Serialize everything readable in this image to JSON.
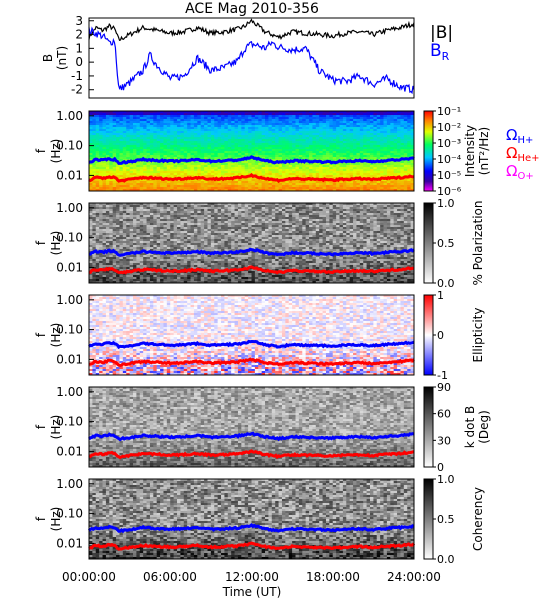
{
  "title": "ACE Mag 2010-356",
  "x_axis": {
    "label": "Time (UT)",
    "ticks": [
      "00:00:00",
      "06:00:00",
      "12:00:00",
      "18:00:00",
      "24:00:00"
    ]
  },
  "colors": {
    "b_magnitude": "#000000",
    "b_radial": "#0000ff",
    "omega_h": "#0000ff",
    "omega_he": "#ff0000",
    "omega_o": "#ff00ff"
  },
  "chart_data": [
    {
      "type": "line",
      "panel": "magnetic-field",
      "ylabel": [
        "B",
        "(nT)"
      ],
      "yticks": [
        "3",
        "2",
        "1",
        "0",
        "-1",
        "-2"
      ],
      "ylim": [
        -2.6,
        3.2
      ],
      "x_hours": [
        0,
        0.5,
        1,
        1.5,
        1.9,
        2.2,
        3,
        4,
        4.5,
        5,
        6,
        7,
        8,
        9,
        10,
        11,
        11.5,
        12,
        12.5,
        13,
        13.5,
        14,
        15,
        16,
        17,
        18,
        19,
        20,
        21,
        22,
        23,
        24
      ],
      "series": [
        {
          "name": "|B|",
          "values": [
            1.8,
            2.5,
            2.3,
            2.6,
            2.4,
            1.6,
            2.0,
            2.5,
            2.4,
            2.3,
            2.1,
            2.2,
            2.5,
            2.1,
            2.2,
            2.4,
            2.6,
            3.0,
            2.6,
            2.2,
            2.0,
            1.8,
            2.2,
            2.1,
            2.0,
            1.9,
            2.1,
            2.2,
            2.0,
            2.3,
            2.5,
            2.8
          ]
        },
        {
          "name": "B_R",
          "values": [
            2.3,
            2.1,
            1.9,
            1.4,
            1.6,
            -2.0,
            -1.5,
            -0.6,
            0.5,
            -0.2,
            -1.2,
            -1.0,
            0.3,
            -0.6,
            -0.4,
            0.1,
            1.0,
            1.3,
            1.2,
            1.0,
            1.4,
            1.1,
            0.9,
            1.0,
            -0.6,
            -1.3,
            -1.4,
            -1.0,
            -1.6,
            -1.2,
            -1.8,
            -2.0
          ]
        }
      ]
    },
    {
      "type": "heatmap",
      "panel": "power-spectrum",
      "ylabel": [
        "f",
        "(Hz)"
      ],
      "yticks": [
        "1.00",
        "0.10",
        "0.01"
      ],
      "colorbar": {
        "label": [
          "Intensity",
          "(nT²/Hz)"
        ],
        "ticks": [
          "10⁻¹",
          "10⁻²",
          "10⁻³",
          "10⁻⁴",
          "10⁻⁵",
          "10⁻⁶"
        ]
      },
      "legend": [
        "Ω_H+",
        "Ω_He+",
        "Ω_O+"
      ]
    },
    {
      "type": "heatmap",
      "panel": "polarization",
      "ylabel": [
        "f",
        "(Hz)"
      ],
      "yticks": [
        "1.00",
        "0.10",
        "0.01"
      ],
      "colorbar": {
        "label": [
          "% Polarization"
        ],
        "ticks": [
          "1.0",
          "0.5",
          "0.0"
        ]
      }
    },
    {
      "type": "heatmap",
      "panel": "ellipticity",
      "ylabel": [
        "f",
        "(Hz)"
      ],
      "yticks": [
        "1.00",
        "0.10",
        "0.01"
      ],
      "colorbar": {
        "label": [
          "Ellipticity"
        ],
        "ticks": [
          "1",
          "0",
          "-1"
        ]
      }
    },
    {
      "type": "heatmap",
      "panel": "wave-normal-angle",
      "ylabel": [
        "f",
        "(Hz)"
      ],
      "yticks": [
        "1.00",
        "0.10",
        "0.01"
      ],
      "colorbar": {
        "label": [
          "k dot B",
          "(Deg)"
        ],
        "ticks": [
          "90",
          "60",
          "30",
          "0"
        ]
      }
    },
    {
      "type": "heatmap",
      "panel": "coherency",
      "ylabel": [
        "f",
        "(Hz)"
      ],
      "yticks": [
        "1.00",
        "0.10",
        "0.01"
      ],
      "colorbar": {
        "label": [
          "Coherency"
        ],
        "ticks": [
          "1.0",
          "0.5",
          "0.0"
        ]
      }
    }
  ],
  "gyrofrequency_lines": {
    "x_hours": [
      0,
      0.5,
      1,
      1.5,
      1.9,
      2.2,
      3,
      4,
      4.5,
      5,
      6,
      7,
      8,
      9,
      10,
      11,
      11.5,
      12,
      12.5,
      13,
      13.5,
      14,
      15,
      16,
      17,
      18,
      19,
      20,
      21,
      22,
      23,
      24
    ],
    "omega_h_hz": [
      0.027,
      0.034,
      0.032,
      0.036,
      0.034,
      0.026,
      0.029,
      0.034,
      0.033,
      0.032,
      0.03,
      0.031,
      0.034,
      0.03,
      0.031,
      0.033,
      0.036,
      0.04,
      0.036,
      0.031,
      0.029,
      0.027,
      0.031,
      0.03,
      0.029,
      0.028,
      0.03,
      0.031,
      0.029,
      0.032,
      0.034,
      0.038
    ],
    "omega_he_hz": [
      0.0068,
      0.0085,
      0.008,
      0.009,
      0.0085,
      0.0065,
      0.0073,
      0.0085,
      0.0083,
      0.008,
      0.0075,
      0.0078,
      0.0085,
      0.0075,
      0.0078,
      0.0083,
      0.009,
      0.01,
      0.009,
      0.0078,
      0.0073,
      0.0068,
      0.0078,
      0.0075,
      0.0073,
      0.007,
      0.0075,
      0.0078,
      0.0073,
      0.008,
      0.0085,
      0.0095
    ]
  }
}
